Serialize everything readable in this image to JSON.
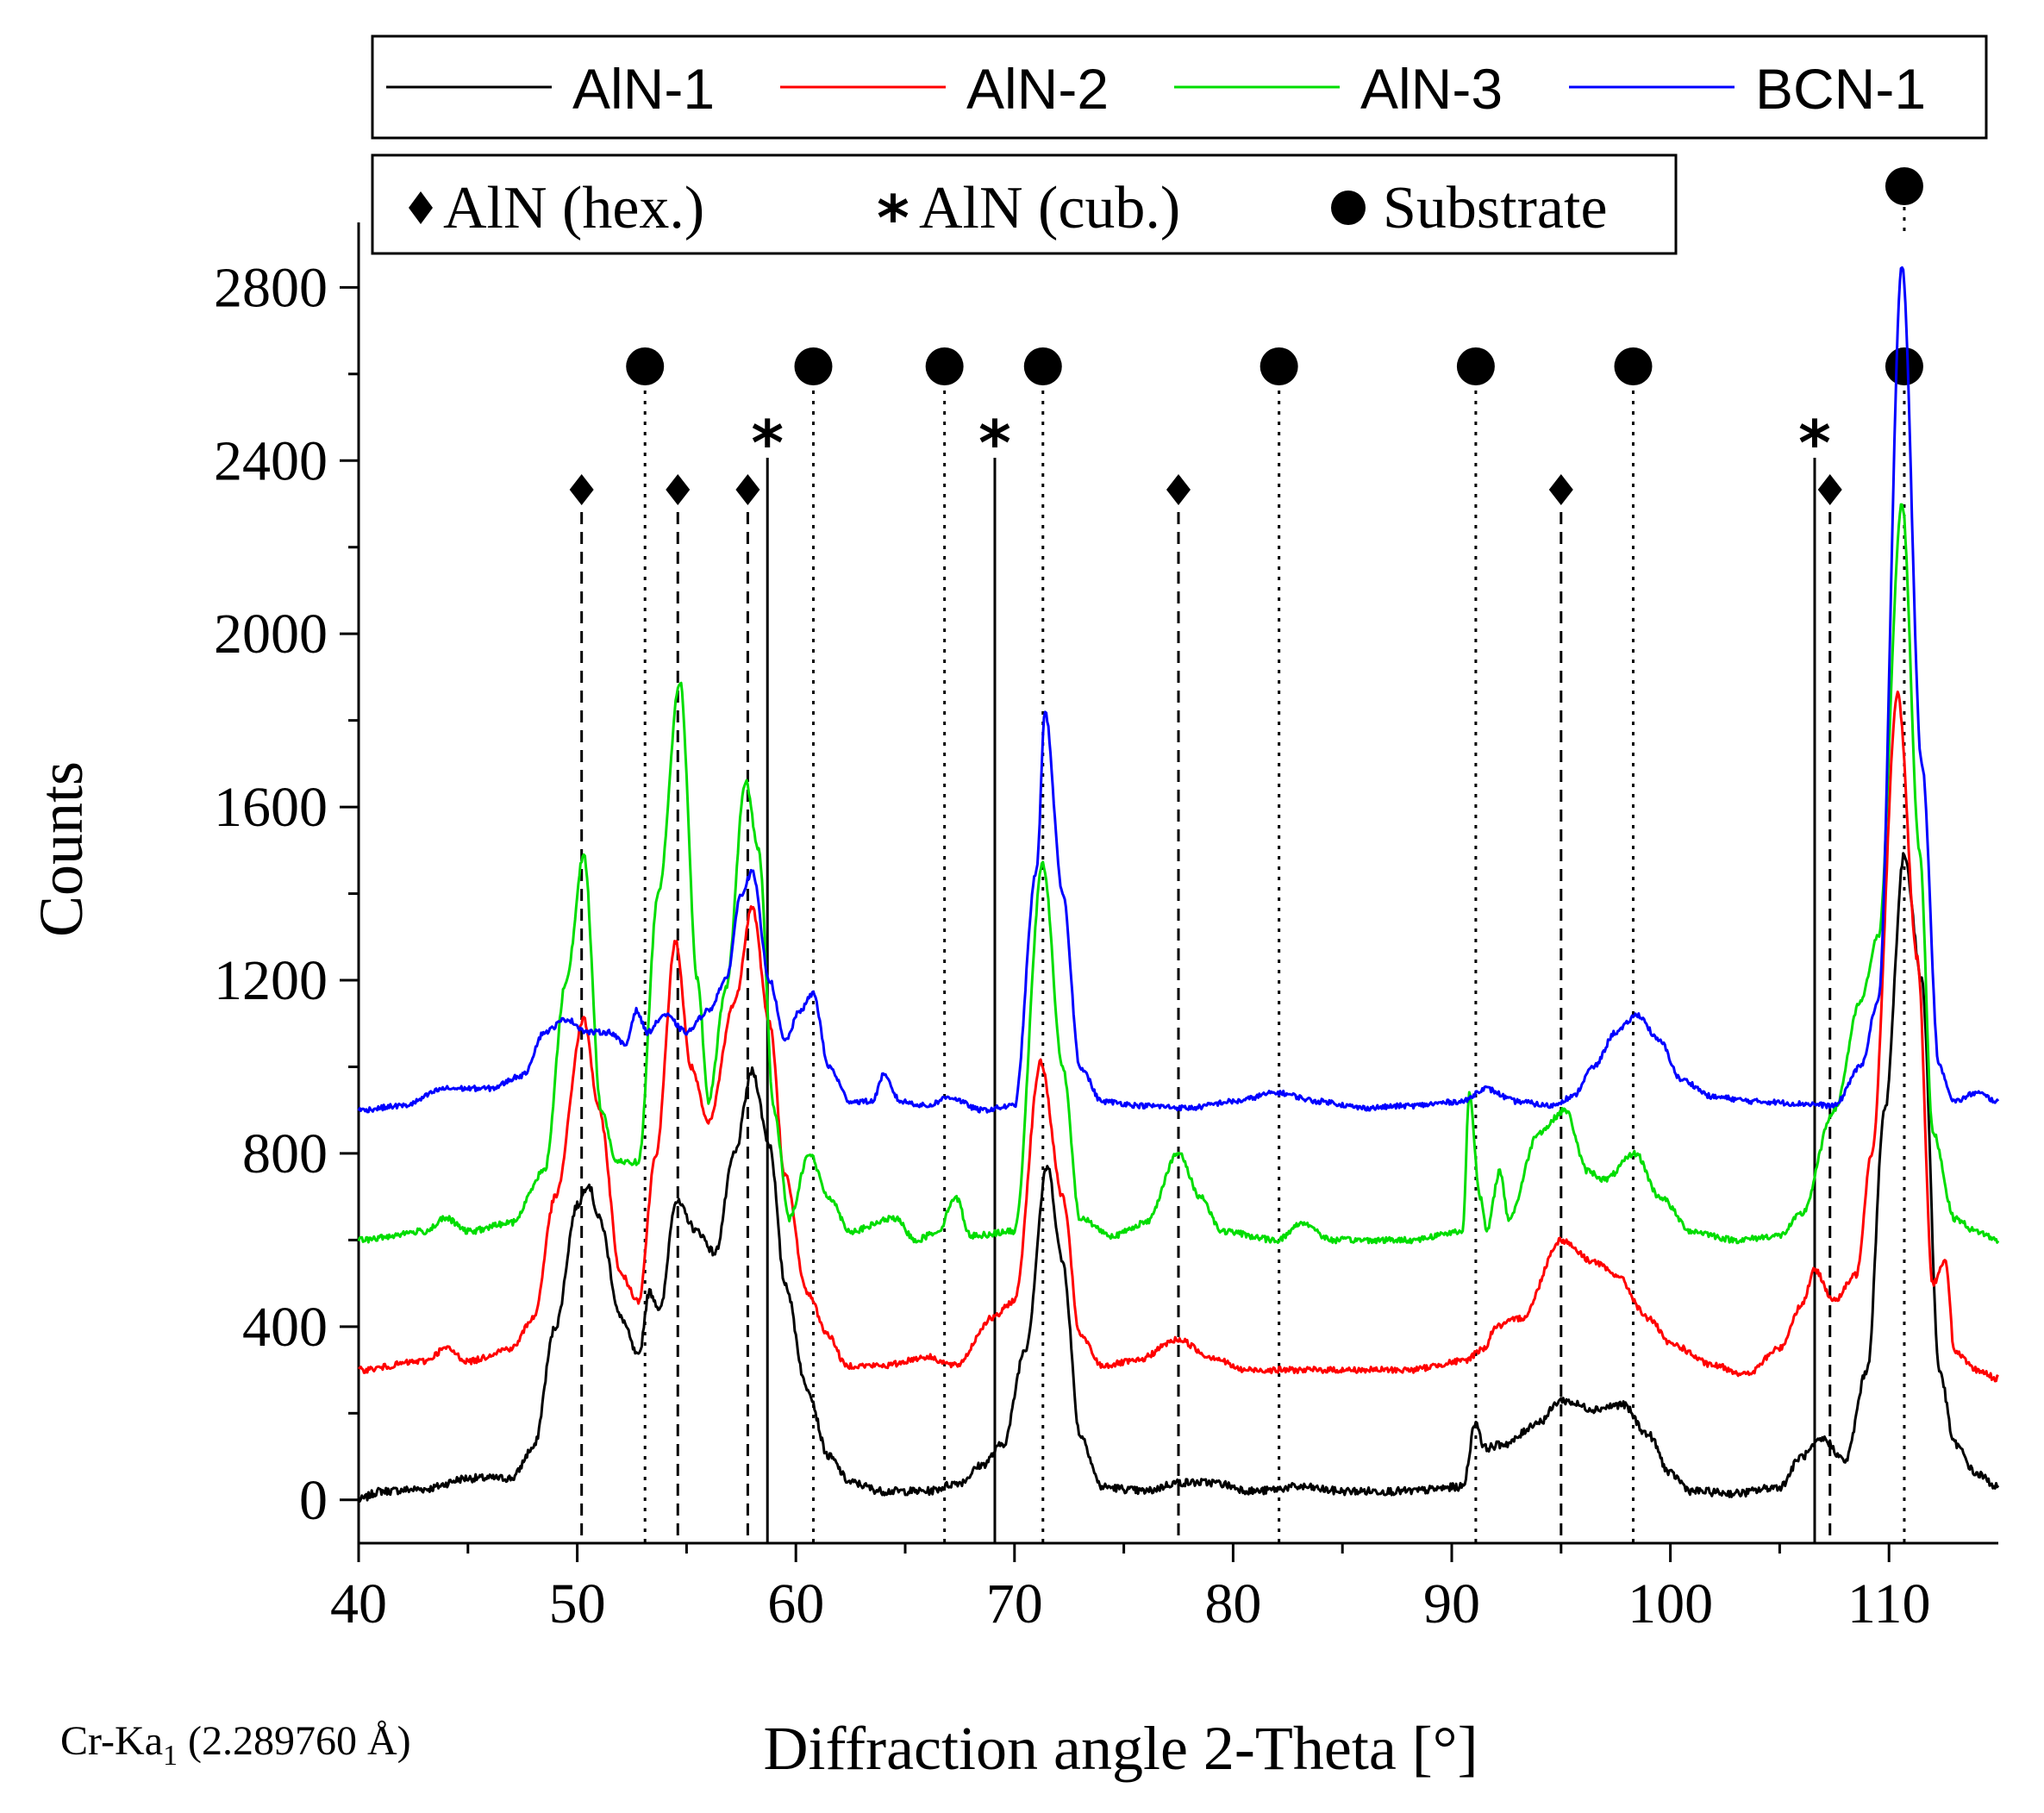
{
  "chart_data": {
    "type": "line",
    "xlabel": "Diffraction angle 2-Theta [°]",
    "ylabel": "Counts",
    "xlim": [
      40,
      115
    ],
    "ylim": [
      -100,
      2950
    ],
    "x_ticks": [
      40,
      50,
      60,
      70,
      80,
      90,
      100,
      110
    ],
    "y_ticks": [
      0,
      400,
      800,
      1200,
      1600,
      2000,
      2400,
      2800
    ],
    "x_tick_labels": [
      "40",
      "50",
      "60",
      "70",
      "80",
      "90",
      "100",
      "110"
    ],
    "y_tick_labels": [
      "0",
      "400",
      "800",
      "1200",
      "1600",
      "2000",
      "2400",
      "2800"
    ],
    "footnote": {
      "prefix": "Cr-Ka",
      "subscript": "1",
      "suffix": " (2.289760 Å)"
    },
    "legend_series": [
      "AlN-1",
      "AlN-2",
      "AlN-3",
      "BCN-1"
    ],
    "legend_phases": [
      {
        "symbol": "diamond",
        "label": "AlN (hex.)"
      },
      {
        "symbol": "star",
        "label": "AlN (cub.)"
      },
      {
        "symbol": "circle",
        "label": "Substrate"
      }
    ],
    "series": [
      {
        "name": "AlN-1",
        "color": "#000000",
        "baseline": 20,
        "noise": 18,
        "points": [
          [
            40,
            0
          ],
          [
            41,
            20
          ],
          [
            43,
            25
          ],
          [
            45,
            50
          ],
          [
            47,
            50
          ],
          [
            48,
            120
          ],
          [
            49,
            400
          ],
          [
            50,
            680
          ],
          [
            50.5,
            730
          ],
          [
            51,
            650
          ],
          [
            52,
            420
          ],
          [
            52.8,
            330
          ],
          [
            53.3,
            480
          ],
          [
            53.8,
            440
          ],
          [
            54.5,
            690
          ],
          [
            55.5,
            620
          ],
          [
            56.3,
            570
          ],
          [
            57.2,
            800
          ],
          [
            58,
            990
          ],
          [
            58.8,
            820
          ],
          [
            59.5,
            500
          ],
          [
            60.5,
            260
          ],
          [
            61.5,
            100
          ],
          [
            62.5,
            40
          ],
          [
            64,
            20
          ],
          [
            66,
            20
          ],
          [
            67.5,
            40
          ],
          [
            68.5,
            80
          ],
          [
            69.5,
            130
          ],
          [
            70.5,
            350
          ],
          [
            71.5,
            770
          ],
          [
            72.2,
            550
          ],
          [
            73,
            150
          ],
          [
            74,
            30
          ],
          [
            76,
            20
          ],
          [
            77.5,
            40
          ],
          [
            79,
            40
          ],
          [
            81,
            20
          ],
          [
            83,
            30
          ],
          [
            85,
            20
          ],
          [
            88,
            20
          ],
          [
            90.5,
            30
          ],
          [
            91.1,
            180
          ],
          [
            91.5,
            120
          ],
          [
            92.5,
            130
          ],
          [
            94,
            180
          ],
          [
            95,
            230
          ],
          [
            96.5,
            210
          ],
          [
            97.8,
            220
          ],
          [
            99,
            150
          ],
          [
            100,
            60
          ],
          [
            101,
            20
          ],
          [
            103,
            15
          ],
          [
            105,
            30
          ],
          [
            106,
            100
          ],
          [
            107,
            140
          ],
          [
            108,
            90
          ],
          [
            109,
            300
          ],
          [
            109.8,
            900
          ],
          [
            110.7,
            1490
          ],
          [
            111.5,
            1200
          ],
          [
            112.3,
            300
          ],
          [
            113,
            130
          ],
          [
            114,
            60
          ],
          [
            115,
            30
          ]
        ]
      },
      {
        "name": "AlN-2",
        "color": "#ff0000",
        "baseline": 310,
        "noise": 14,
        "points": [
          [
            40,
            300
          ],
          [
            43,
            320
          ],
          [
            44,
            350
          ],
          [
            45,
            320
          ],
          [
            47,
            350
          ],
          [
            48,
            420
          ],
          [
            49,
            700
          ],
          [
            50.3,
            1110
          ],
          [
            51,
            900
          ],
          [
            52,
            520
          ],
          [
            52.8,
            460
          ],
          [
            53.6,
            800
          ],
          [
            54.5,
            1290
          ],
          [
            55.2,
            1000
          ],
          [
            56,
            870
          ],
          [
            57.2,
            1150
          ],
          [
            58,
            1370
          ],
          [
            58.8,
            1100
          ],
          [
            59.5,
            750
          ],
          [
            60.5,
            480
          ],
          [
            61.5,
            380
          ],
          [
            62.3,
            310
          ],
          [
            64,
            310
          ],
          [
            66,
            330
          ],
          [
            67.3,
            310
          ],
          [
            69,
            420
          ],
          [
            70,
            460
          ],
          [
            71.2,
            1010
          ],
          [
            72.2,
            700
          ],
          [
            73,
            380
          ],
          [
            74,
            310
          ],
          [
            75.5,
            320
          ],
          [
            77.5,
            370
          ],
          [
            79,
            330
          ],
          [
            80.5,
            300
          ],
          [
            84,
            300
          ],
          [
            88,
            300
          ],
          [
            90.5,
            320
          ],
          [
            91.5,
            350
          ],
          [
            92,
            400
          ],
          [
            93.2,
            420
          ],
          [
            95,
            600
          ],
          [
            96.5,
            550
          ],
          [
            97.5,
            520
          ],
          [
            99,
            420
          ],
          [
            100,
            360
          ],
          [
            102,
            310
          ],
          [
            103.5,
            290
          ],
          [
            105,
            350
          ],
          [
            106,
            450
          ],
          [
            106.6,
            530
          ],
          [
            107.5,
            460
          ],
          [
            108.5,
            520
          ],
          [
            109.2,
            800
          ],
          [
            110.4,
            1860
          ],
          [
            111.3,
            1250
          ],
          [
            112,
            500
          ],
          [
            112.6,
            550
          ],
          [
            113,
            340
          ],
          [
            114,
            300
          ],
          [
            115,
            280
          ]
        ]
      },
      {
        "name": "AlN-3",
        "color": "#00dd00",
        "baseline": 610,
        "noise": 14,
        "points": [
          [
            40,
            600
          ],
          [
            43,
            620
          ],
          [
            44,
            650
          ],
          [
            45,
            620
          ],
          [
            47,
            640
          ],
          [
            48.5,
            760
          ],
          [
            49.5,
            1200
          ],
          [
            50.3,
            1490
          ],
          [
            51.1,
            900
          ],
          [
            51.8,
            780
          ],
          [
            52.8,
            780
          ],
          [
            53.7,
            1400
          ],
          [
            54.7,
            1890
          ],
          [
            55.5,
            1200
          ],
          [
            56,
            920
          ],
          [
            56.8,
            1180
          ],
          [
            57.7,
            1660
          ],
          [
            58.3,
            1500
          ],
          [
            59,
            900
          ],
          [
            59.7,
            650
          ],
          [
            60.6,
            800
          ],
          [
            61.5,
            700
          ],
          [
            62.5,
            620
          ],
          [
            64.5,
            650
          ],
          [
            65.5,
            600
          ],
          [
            66.5,
            620
          ],
          [
            67.3,
            700
          ],
          [
            68,
            610
          ],
          [
            70,
            620
          ],
          [
            71.3,
            1470
          ],
          [
            72.2,
            1000
          ],
          [
            73,
            650
          ],
          [
            74.5,
            610
          ],
          [
            76,
            640
          ],
          [
            77.5,
            800
          ],
          [
            78.5,
            700
          ],
          [
            79.5,
            620
          ],
          [
            82,
            600
          ],
          [
            83.2,
            640
          ],
          [
            84.5,
            600
          ],
          [
            88,
            600
          ],
          [
            90.5,
            620
          ],
          [
            90.8,
            940
          ],
          [
            91.3,
            700
          ],
          [
            91.6,
            620
          ],
          [
            92.2,
            760
          ],
          [
            92.6,
            650
          ],
          [
            94,
            850
          ],
          [
            95.2,
            900
          ],
          [
            96.2,
            760
          ],
          [
            97,
            740
          ],
          [
            98.4,
            800
          ],
          [
            99.5,
            700
          ],
          [
            101,
            620
          ],
          [
            103,
            600
          ],
          [
            105,
            610
          ],
          [
            106,
            660
          ],
          [
            107.5,
            900
          ],
          [
            108.7,
            1150
          ],
          [
            109.5,
            1300
          ],
          [
            110.6,
            2300
          ],
          [
            111.4,
            1500
          ],
          [
            112,
            850
          ],
          [
            113,
            650
          ],
          [
            114,
            620
          ],
          [
            115,
            600
          ]
        ]
      },
      {
        "name": "BCN-1",
        "color": "#0000ff",
        "baseline": 915,
        "noise": 12,
        "points": [
          [
            40,
            900
          ],
          [
            42,
            910
          ],
          [
            44,
            950
          ],
          [
            46,
            950
          ],
          [
            47.5,
            980
          ],
          [
            48.5,
            1080
          ],
          [
            49.5,
            1110
          ],
          [
            50.5,
            1080
          ],
          [
            51.5,
            1080
          ],
          [
            52.2,
            1050
          ],
          [
            52.7,
            1130
          ],
          [
            53.2,
            1080
          ],
          [
            54,
            1120
          ],
          [
            55,
            1080
          ],
          [
            56,
            1130
          ],
          [
            56.8,
            1200
          ],
          [
            57.5,
            1400
          ],
          [
            58,
            1450
          ],
          [
            58.8,
            1200
          ],
          [
            59.5,
            1060
          ],
          [
            60.2,
            1130
          ],
          [
            60.8,
            1170
          ],
          [
            61.5,
            1000
          ],
          [
            62.5,
            920
          ],
          [
            63.5,
            920
          ],
          [
            64,
            980
          ],
          [
            64.8,
            920
          ],
          [
            66,
            910
          ],
          [
            67,
            930
          ],
          [
            68.5,
            900
          ],
          [
            70,
            910
          ],
          [
            71,
            1450
          ],
          [
            71.4,
            1820
          ],
          [
            72.2,
            1400
          ],
          [
            73,
            1000
          ],
          [
            74,
            920
          ],
          [
            76,
            910
          ],
          [
            78,
            905
          ],
          [
            80,
            920
          ],
          [
            82,
            940
          ],
          [
            84,
            920
          ],
          [
            86,
            905
          ],
          [
            88,
            910
          ],
          [
            90.5,
            920
          ],
          [
            91.5,
            950
          ],
          [
            93,
            920
          ],
          [
            94.5,
            910
          ],
          [
            95.5,
            930
          ],
          [
            96.5,
            1000
          ],
          [
            97.5,
            1080
          ],
          [
            98.5,
            1120
          ],
          [
            99.5,
            1060
          ],
          [
            100.5,
            970
          ],
          [
            102,
            930
          ],
          [
            104,
            920
          ],
          [
            106,
            915
          ],
          [
            107.5,
            910
          ],
          [
            108.7,
            1000
          ],
          [
            109.5,
            1150
          ],
          [
            110.6,
            2850
          ],
          [
            111.5,
            1700
          ],
          [
            112.3,
            1000
          ],
          [
            113,
            920
          ],
          [
            114,
            940
          ],
          [
            115,
            920
          ]
        ]
      }
    ],
    "annotations": [
      {
        "type": "diamond",
        "x": 50.2,
        "line_style": "dashed"
      },
      {
        "type": "diamond",
        "x": 54.6,
        "line_style": "dashed"
      },
      {
        "type": "diamond",
        "x": 57.8,
        "line_style": "dashed"
      },
      {
        "type": "diamond",
        "x": 77.5,
        "line_style": "dashed"
      },
      {
        "type": "diamond",
        "x": 95.0,
        "line_style": "dashed"
      },
      {
        "type": "diamond",
        "x": 107.3,
        "line_style": "dashed"
      },
      {
        "type": "star",
        "x": 58.7,
        "line_style": "solid"
      },
      {
        "type": "star",
        "x": 69.1,
        "line_style": "solid"
      },
      {
        "type": "star",
        "x": 106.6,
        "line_style": "solid"
      },
      {
        "type": "circle",
        "x": 53.1,
        "line_style": "dotted"
      },
      {
        "type": "circle",
        "x": 60.8,
        "line_style": "dotted"
      },
      {
        "type": "circle",
        "x": 66.8,
        "line_style": "dotted"
      },
      {
        "type": "circle",
        "x": 71.3,
        "line_style": "dotted"
      },
      {
        "type": "circle",
        "x": 82.1,
        "line_style": "dotted"
      },
      {
        "type": "circle",
        "x": 91.1,
        "line_style": "dotted"
      },
      {
        "type": "circle",
        "x": 98.3,
        "line_style": "dotted"
      },
      {
        "type": "circle",
        "x": 110.7,
        "line_style": "dotted"
      }
    ]
  }
}
